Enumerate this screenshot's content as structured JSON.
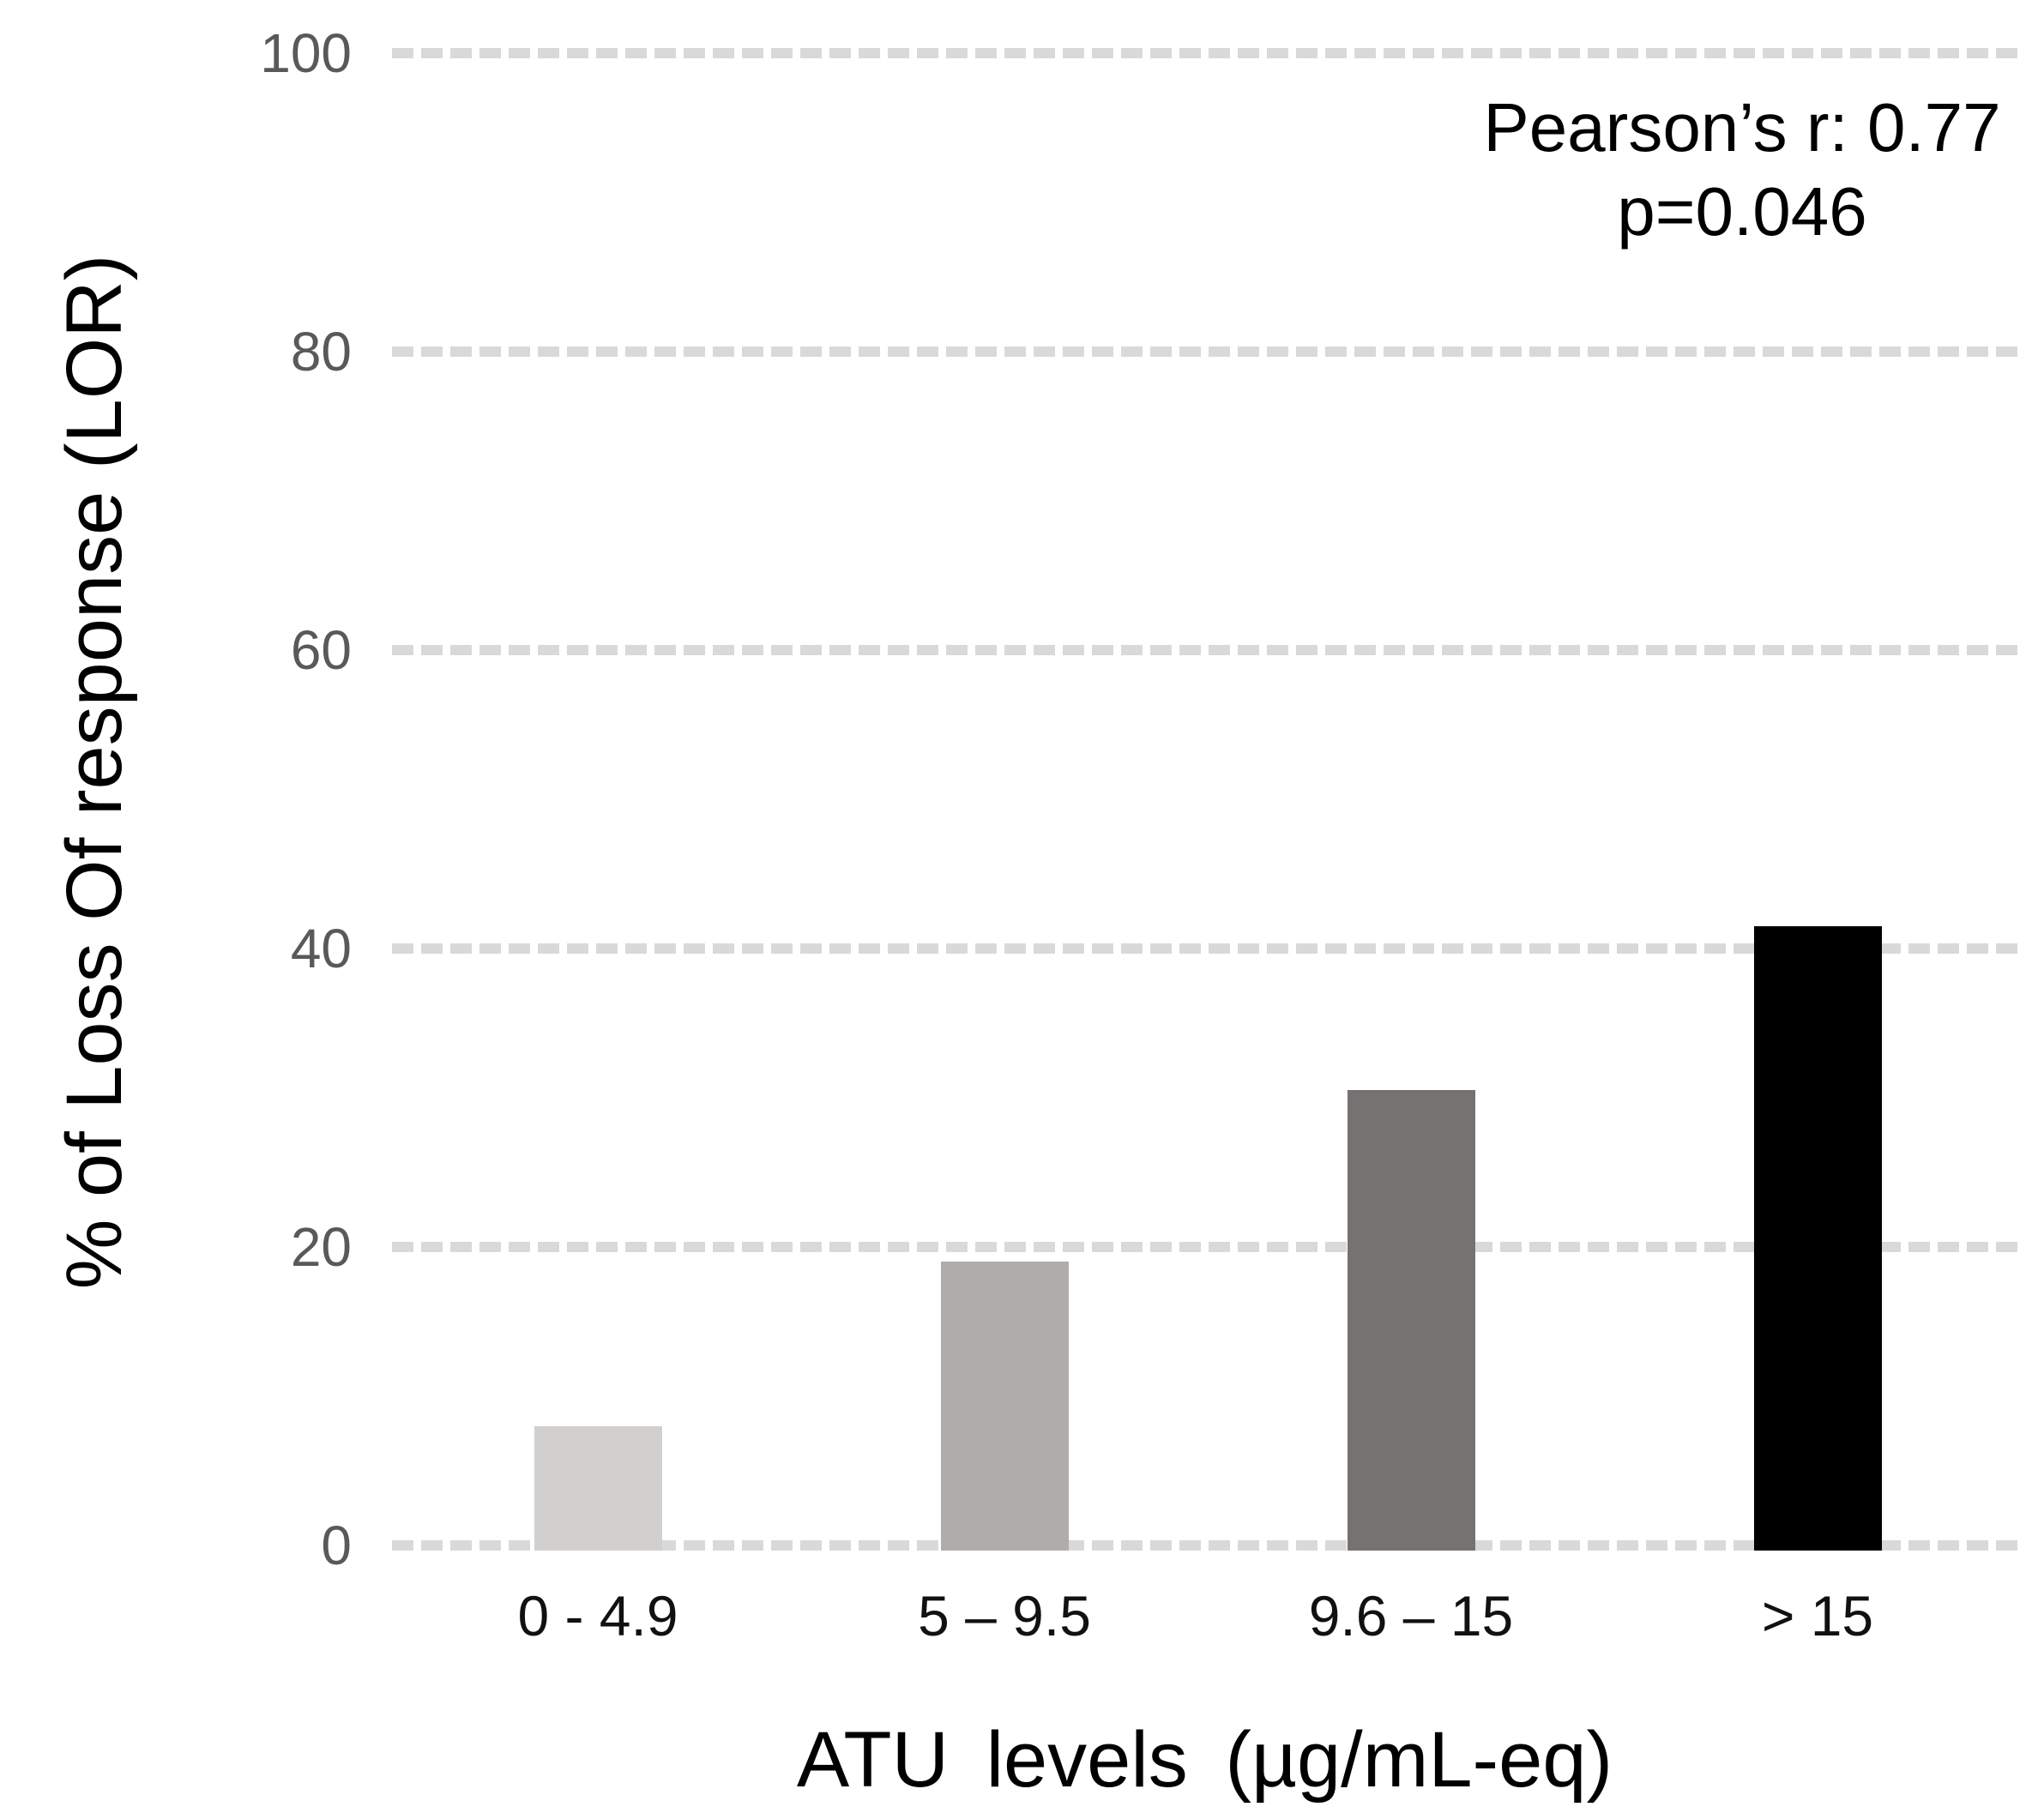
{
  "chart_data": {
    "type": "bar",
    "title": "",
    "categories": [
      "0 - 4.9",
      "5 – 9.5",
      "9.6 – 15",
      "> 15"
    ],
    "values": [
      8,
      19,
      30.5,
      41.5
    ],
    "series": [
      {
        "name": "% of Loss Of response (LOR)",
        "values": [
          8,
          19,
          30.5,
          41.5
        ]
      }
    ],
    "xlabel": "ATU levels (µg/mL-eq)",
    "ylabel": "% of Loss Of response (LOR)",
    "ylim": [
      0,
      100
    ],
    "yticks": [
      0,
      20,
      40,
      60,
      80,
      100
    ],
    "grid": "horizontal-dashed",
    "legend": "none",
    "bar_colors": [
      "#d2d0ce",
      "#b0acab",
      "#767271",
      "#000000"
    ],
    "gridline_color": "#d9d9d9",
    "y_tick_color": "#595959",
    "x_tick_color": "#111111",
    "annotation": {
      "line1": "Pearson’s r: 0.77",
      "line2": "p=0.046"
    }
  }
}
